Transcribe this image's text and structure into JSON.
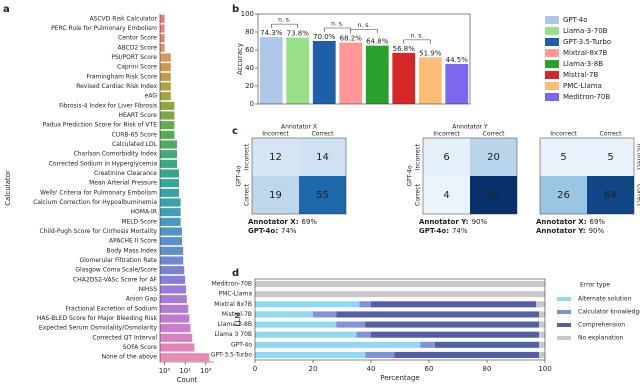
{
  "panel_labels": [
    "a",
    "b",
    "c",
    "d"
  ],
  "chart_data": [
    {
      "type": "hbar",
      "xlabel": "Count",
      "ylabel": "Calculator",
      "xscale": "log",
      "xlim": [
        0.6,
        250
      ],
      "xticks": [
        {
          "value": 1,
          "label": "10⁰"
        },
        {
          "value": 10,
          "label": "10¹"
        },
        {
          "value": 100,
          "label": "10²"
        }
      ],
      "palette": [
        "#e8798a",
        "#d9955a",
        "#a8a23c",
        "#5aab52",
        "#35a88a",
        "#3aa0b0",
        "#5b8fcc",
        "#8c7ed4",
        "#c37ad0",
        "#ea89b4"
      ],
      "categories": [
        "ASCVD Risk Calculator",
        "PERC Rule for Pulmonary Embolism",
        "Centor Score",
        "ABCD2 Score",
        "PSI/PORT Score",
        "Caprini Score",
        "Framingham Risk Score",
        "Revised Cardiac Risk Index",
        "eAG",
        "Fibrosis-4 Index for Liver Fibrosis",
        "HEART Score",
        "Padua Prediction Score for Risk of VTE",
        "CURB-65 Score",
        "Calculated LDL",
        "Charlson Comorbidity Index",
        "Corrected Sodium in Hyperglycemia",
        "Creatinine Clearance",
        "Mean Arterial Pressure",
        "Wells' Criteria for Pulmonary Embolism",
        "Calcium Correction for Hypoalbuminemia",
        "HOMA-IR",
        "MELD Score",
        "Child-Pugh Score for Cirrhosis Mortality",
        "APACHE II Score",
        "Body Mass Index",
        "Glomerular Filtration Rate",
        "Glasgow Coma Scale/Score",
        "CHA2DS2-VASc Score for AF",
        "NIHSS",
        "Anion Gap",
        "Fractional Excretion of Sodium",
        "HAS-BLED Score for Major Bleeding Risk",
        "Expected Serum Osmolality/Osmolarity",
        "Corrected QT Interval",
        "SOFA Score",
        "None of the above"
      ],
      "values": [
        1,
        1,
        1,
        1,
        2,
        2,
        2,
        2,
        2,
        3,
        3,
        3,
        3,
        4,
        4,
        4,
        5,
        5,
        5,
        6,
        6,
        6,
        7,
        7,
        8,
        8,
        9,
        10,
        11,
        12,
        14,
        16,
        18,
        22,
        28,
        150
      ]
    },
    {
      "type": "bar",
      "ylabel": "Accuracy",
      "legend": "right",
      "categories": [
        "GPT-4o",
        "Llama-3-70B",
        "GPT-3.5-Turbo",
        "Mixtral-8x7B",
        "Llama-3-8B",
        "Mistral-7B",
        "PMC-Llama",
        "Meditron-70B"
      ],
      "values": [
        74.3,
        73.8,
        70.0,
        68.2,
        64.8,
        56.8,
        51.9,
        44.5
      ],
      "value_labels": [
        "74.3%",
        "73.8%",
        "70.0%",
        "68.2%",
        "64.8%",
        "56.8%",
        "51.9%",
        "44.5%"
      ],
      "colors": [
        "#aec7e8",
        "#98df8a",
        "#1f5fa8",
        "#ff9896",
        "#2ca02c",
        "#d62728",
        "#ffbb78",
        "#7b68ee"
      ],
      "ylim": [
        0,
        100
      ],
      "yticks": [
        0,
        20,
        40,
        60,
        80,
        100
      ],
      "annotations": [
        {
          "text": "n. s.",
          "between": [
            0,
            1
          ]
        },
        {
          "text": "n. s.",
          "between": [
            2,
            3
          ]
        },
        {
          "text": "n. s.",
          "between": [
            3,
            4
          ]
        },
        {
          "text": "n. s.",
          "between": [
            5,
            6
          ]
        }
      ]
    },
    {
      "type": "heatmap",
      "title": "Annotator X",
      "ylabel": "GPT-4o",
      "ylabel_side": "left",
      "x_categories": [
        "Incorrect",
        "Correct"
      ],
      "y_categories": [
        "Incorrect",
        "Correct"
      ],
      "values": [
        [
          12,
          14
        ],
        [
          19,
          55
        ]
      ],
      "colormap": [
        "#f7fbff",
        "#c6dbef",
        "#6baed6",
        "#2171b5",
        "#08306b"
      ],
      "color_range": [
        0,
        70
      ],
      "captions": [
        {
          "label": "Annotator X:",
          "text": "69%"
        },
        {
          "label": "GPT-4o:",
          "text": "74%"
        }
      ]
    },
    {
      "type": "heatmap",
      "title": "Annotator Y",
      "ylabel": "GPT-4o",
      "ylabel_side": "left",
      "x_categories": [
        "Incorrect",
        "Correct"
      ],
      "y_categories": [
        "Incorrect",
        "Correct"
      ],
      "values": [
        [
          6,
          20
        ],
        [
          4,
          70
        ]
      ],
      "colormap": [
        "#f7fbff",
        "#c6dbef",
        "#6baed6",
        "#2171b5",
        "#08306b"
      ],
      "color_range": [
        0,
        70
      ],
      "captions": [
        {
          "label": "Annotator Y:",
          "text": "90%"
        },
        {
          "label": "GPT-4o:",
          "text": "74%"
        }
      ]
    },
    {
      "type": "heatmap",
      "ylabel": "Annotator Y",
      "ylabel_side": "right",
      "x_categories": [
        "Incorrect",
        "Correct"
      ],
      "y_categories": [
        "Incorrect",
        "Correct"
      ],
      "values": [
        [
          5,
          5
        ],
        [
          26,
          64
        ]
      ],
      "colormap": [
        "#f7fbff",
        "#c6dbef",
        "#6baed6",
        "#2171b5",
        "#08306b"
      ],
      "color_range": [
        0,
        70
      ],
      "captions": [
        {
          "label": "Annotator X:",
          "text": "69%"
        },
        {
          "label": "Annotator Y:",
          "text": "90%"
        }
      ]
    },
    {
      "type": "stacked_hbar",
      "xlabel": "Percentage",
      "ylabel": "LLM",
      "legend_title": "Error type",
      "legend": "right",
      "categories": [
        "Meditron-70B",
        "PMC-Llama",
        "Mixtral 8x7B",
        "Mistral-7B",
        "Llama-3-8B",
        "Llama 3 70B",
        "GPT-4o",
        "GPT-3.5-Turbo"
      ],
      "xlim": [
        0,
        100
      ],
      "xticks": [
        0,
        20,
        40,
        60,
        80,
        100
      ],
      "series": [
        {
          "name": "Alternate solution",
          "color": "#8fd9f2",
          "values": [
            0,
            0,
            36,
            20,
            28,
            35,
            57,
            38
          ]
        },
        {
          "name": "Calculator knowledge",
          "color": "#7f93dc",
          "values": [
            0,
            0,
            4,
            8,
            10,
            5,
            5,
            10
          ]
        },
        {
          "name": "Comprehension",
          "color": "#525fa6",
          "values": [
            0,
            0,
            57,
            70,
            60,
            58,
            36,
            50
          ]
        },
        {
          "name": "No explanation",
          "color": "#c9c9c9",
          "values": [
            100,
            100,
            3,
            2,
            2,
            2,
            2,
            2
          ]
        }
      ]
    }
  ]
}
